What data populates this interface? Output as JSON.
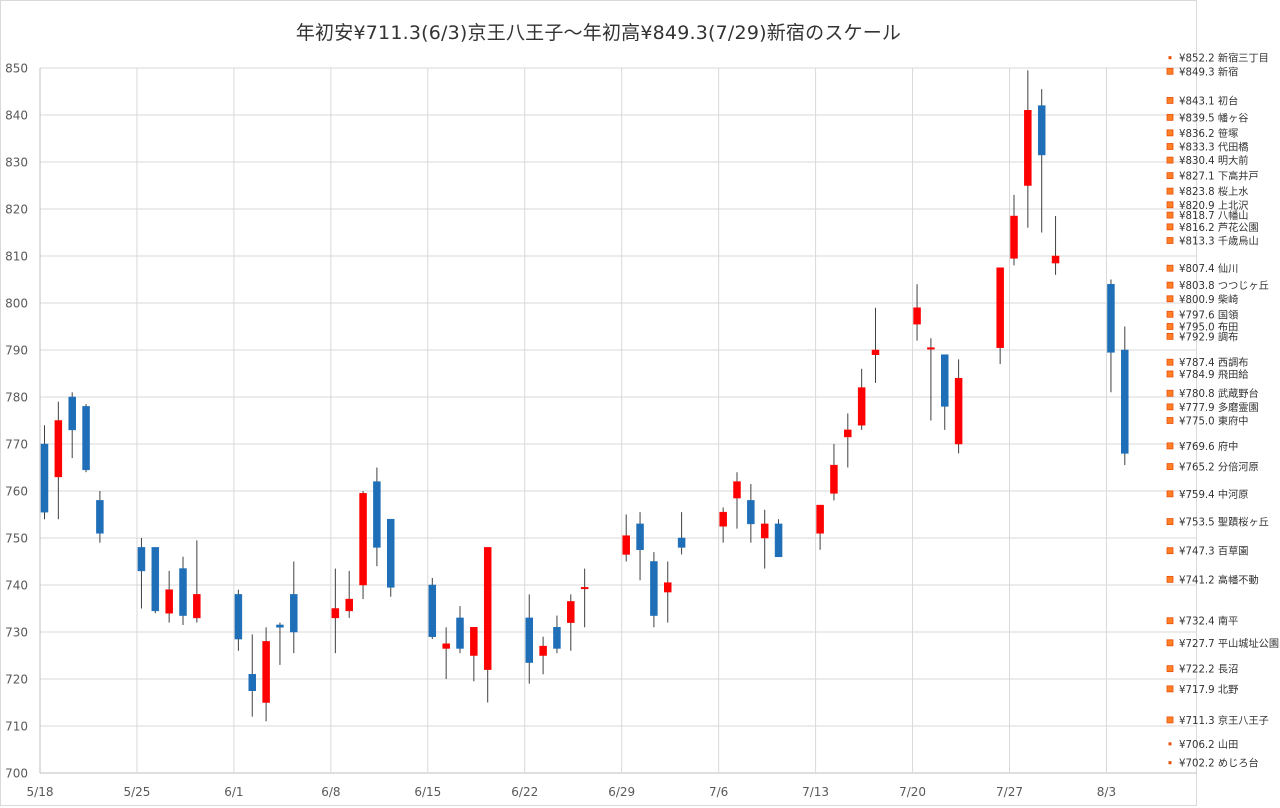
{
  "chart_data": {
    "type": "candlestick",
    "title": "年初安¥711.3(6/3)京王八王子～年初高¥849.3(7/29)新宿のスケール",
    "xlabel": "",
    "ylabel": "",
    "ylim": [
      700,
      850
    ],
    "yticks": [
      "700",
      "710",
      "720",
      "730",
      "740",
      "750",
      "760",
      "770",
      "780",
      "790",
      "800",
      "810",
      "820",
      "830",
      "840",
      "850"
    ],
    "xticks": [
      {
        "label": "5/18",
        "day": 0
      },
      {
        "label": "5/25",
        "day": 7
      },
      {
        "label": "6/1",
        "day": 14
      },
      {
        "label": "6/8",
        "day": 21
      },
      {
        "label": "6/15",
        "day": 28
      },
      {
        "label": "6/22",
        "day": 35
      },
      {
        "label": "6/29",
        "day": 42
      },
      {
        "label": "7/6",
        "day": 49
      },
      {
        "label": "7/13",
        "day": 56
      },
      {
        "label": "7/20",
        "day": 63
      },
      {
        "label": "7/27",
        "day": 70
      },
      {
        "label": "8/3",
        "day": 77
      }
    ],
    "grid": true,
    "up_color": "#ff0000",
    "down_color": "#1f6fb8",
    "wick_color": "#404040",
    "candles": [
      {
        "day": 0,
        "open": 770,
        "high": 774,
        "low": 754,
        "close": 755.5
      },
      {
        "day": 1,
        "open": 763,
        "high": 779,
        "low": 754,
        "close": 775
      },
      {
        "day": 2,
        "open": 780,
        "high": 781,
        "low": 767,
        "close": 773
      },
      {
        "day": 3,
        "open": 778,
        "high": 778.5,
        "low": 764,
        "close": 764.5
      },
      {
        "day": 4,
        "open": 758,
        "high": 760,
        "low": 749,
        "close": 751
      },
      {
        "day": 7,
        "open": 748,
        "high": 750,
        "low": 735,
        "close": 743
      },
      {
        "day": 8,
        "open": 748,
        "high": 748,
        "low": 734,
        "close": 734.5
      },
      {
        "day": 9,
        "open": 734,
        "high": 743,
        "low": 732,
        "close": 739
      },
      {
        "day": 10,
        "open": 743.5,
        "high": 746,
        "low": 731.5,
        "close": 733.5
      },
      {
        "day": 11,
        "open": 733,
        "high": 749.5,
        "low": 732,
        "close": 738
      },
      {
        "day": 14,
        "open": 738,
        "high": 739,
        "low": 726,
        "close": 728.5
      },
      {
        "day": 15,
        "open": 721,
        "high": 729.5,
        "low": 712,
        "close": 717.5
      },
      {
        "day": 16,
        "open": 715,
        "high": 731,
        "low": 711,
        "close": 728
      },
      {
        "day": 17,
        "open": 731.5,
        "high": 732,
        "low": 723,
        "close": 731
      },
      {
        "day": 18,
        "open": 738,
        "high": 745,
        "low": 725.5,
        "close": 730
      },
      {
        "day": 21,
        "open": 733,
        "high": 743.5,
        "low": 725.5,
        "close": 735
      },
      {
        "day": 22,
        "open": 734.5,
        "high": 743,
        "low": 733,
        "close": 737
      },
      {
        "day": 23,
        "open": 740,
        "high": 760,
        "low": 737,
        "close": 759.5
      },
      {
        "day": 24,
        "open": 762,
        "high": 765,
        "low": 744,
        "close": 748
      },
      {
        "day": 25,
        "open": 754,
        "high": 754,
        "low": 737.5,
        "close": 739.5
      },
      {
        "day": 28,
        "open": 740,
        "high": 741.5,
        "low": 728.5,
        "close": 729
      },
      {
        "day": 29,
        "open": 726.5,
        "high": 731,
        "low": 720,
        "close": 727.5
      },
      {
        "day": 30,
        "open": 733,
        "high": 735.5,
        "low": 725.5,
        "close": 726.5
      },
      {
        "day": 31,
        "open": 725,
        "high": 731,
        "low": 719.5,
        "close": 731
      },
      {
        "day": 32,
        "open": 722,
        "high": 748,
        "low": 715,
        "close": 748
      },
      {
        "day": 35,
        "open": 733,
        "high": 738,
        "low": 719,
        "close": 723.5
      },
      {
        "day": 36,
        "open": 725,
        "high": 729,
        "low": 721,
        "close": 727
      },
      {
        "day": 37,
        "open": 731,
        "high": 733.5,
        "low": 725.5,
        "close": 726.5
      },
      {
        "day": 38,
        "open": 732,
        "high": 738,
        "low": 726,
        "close": 736.5
      },
      {
        "day": 39,
        "open": 739.5,
        "high": 743.5,
        "low": 731,
        "close": 739.5
      },
      {
        "day": 42,
        "open": 746.5,
        "high": 755,
        "low": 745,
        "close": 750.5
      },
      {
        "day": 43,
        "open": 753,
        "high": 755.5,
        "low": 741,
        "close": 747.5
      },
      {
        "day": 44,
        "open": 745,
        "high": 747,
        "low": 731,
        "close": 733.5
      },
      {
        "day": 45,
        "open": 738.5,
        "high": 745,
        "low": 732,
        "close": 740.5
      },
      {
        "day": 46,
        "open": 750,
        "high": 755.5,
        "low": 746.5,
        "close": 748
      },
      {
        "day": 49,
        "open": 752.5,
        "high": 756.5,
        "low": 749,
        "close": 755.5
      },
      {
        "day": 50,
        "open": 758.5,
        "high": 764,
        "low": 752,
        "close": 762
      },
      {
        "day": 51,
        "open": 758,
        "high": 761.5,
        "low": 749,
        "close": 753
      },
      {
        "day": 52,
        "open": 750,
        "high": 756,
        "low": 743.5,
        "close": 753
      },
      {
        "day": 53,
        "open": 753,
        "high": 754,
        "low": 746,
        "close": 746
      },
      {
        "day": 56,
        "open": 751,
        "high": 757,
        "low": 747.5,
        "close": 757
      },
      {
        "day": 57,
        "open": 759.5,
        "high": 770,
        "low": 758,
        "close": 765.5
      },
      {
        "day": 58,
        "open": 771.5,
        "high": 776.5,
        "low": 765,
        "close": 773
      },
      {
        "day": 59,
        "open": 774,
        "high": 786,
        "low": 773,
        "close": 782
      },
      {
        "day": 60,
        "open": 789,
        "high": 799,
        "low": 783,
        "close": 790
      },
      {
        "day": 63,
        "open": 795.5,
        "high": 804,
        "low": 792,
        "close": 799
      },
      {
        "day": 64,
        "open": 790.5,
        "high": 792.5,
        "low": 775,
        "close": 790.5
      },
      {
        "day": 65,
        "open": 789,
        "high": 789,
        "low": 773,
        "close": 778
      },
      {
        "day": 66,
        "open": 770,
        "high": 788,
        "low": 768,
        "close": 784
      },
      {
        "day": 69,
        "open": 790.5,
        "high": 807.5,
        "low": 787,
        "close": 807.5
      },
      {
        "day": 70,
        "open": 809.5,
        "high": 823,
        "low": 808,
        "close": 818.5
      },
      {
        "day": 71,
        "open": 825,
        "high": 849.5,
        "low": 816,
        "close": 841
      },
      {
        "day": 72,
        "open": 842,
        "high": 845.5,
        "low": 815,
        "close": 831.5
      },
      {
        "day": 73,
        "open": 808.5,
        "high": 818.5,
        "low": 806,
        "close": 810
      },
      {
        "day": 77,
        "open": 804,
        "high": 805,
        "low": 781,
        "close": 789.5
      },
      {
        "day": 78,
        "open": 790,
        "high": 795,
        "low": 765.5,
        "close": 768
      }
    ],
    "stations": [
      {
        "price": 852.2,
        "label": "¥852.2 新宿三丁目",
        "marker": "small"
      },
      {
        "price": 849.3,
        "label": "¥849.3 新宿",
        "marker": "square"
      },
      {
        "price": 843.1,
        "label": "¥843.1 初台",
        "marker": "square"
      },
      {
        "price": 839.5,
        "label": "¥839.5 幡ヶ谷",
        "marker": "square"
      },
      {
        "price": 836.2,
        "label": "¥836.2 笹塚",
        "marker": "square"
      },
      {
        "price": 833.3,
        "label": "¥833.3 代田橋",
        "marker": "square"
      },
      {
        "price": 830.4,
        "label": "¥830.4 明大前",
        "marker": "square"
      },
      {
        "price": 827.1,
        "label": "¥827.1 下高井戸",
        "marker": "square"
      },
      {
        "price": 823.8,
        "label": "¥823.8 桜上水",
        "marker": "square"
      },
      {
        "price": 820.9,
        "label": "¥820.9 上北沢",
        "marker": "square"
      },
      {
        "price": 818.7,
        "label": "¥818.7 八幡山",
        "marker": "square"
      },
      {
        "price": 816.2,
        "label": "¥816.2 芦花公園",
        "marker": "square"
      },
      {
        "price": 813.3,
        "label": "¥813.3 千歳烏山",
        "marker": "square"
      },
      {
        "price": 807.4,
        "label": "¥807.4 仙川",
        "marker": "square"
      },
      {
        "price": 803.8,
        "label": "¥803.8 つつじヶ丘",
        "marker": "square"
      },
      {
        "price": 800.9,
        "label": "¥800.9 柴崎",
        "marker": "square"
      },
      {
        "price": 797.6,
        "label": "¥797.6 国領",
        "marker": "square"
      },
      {
        "price": 795.0,
        "label": "¥795.0 布田",
        "marker": "square"
      },
      {
        "price": 792.9,
        "label": "¥792.9 調布",
        "marker": "square"
      },
      {
        "price": 787.4,
        "label": "¥787.4 西調布",
        "marker": "square"
      },
      {
        "price": 784.9,
        "label": "¥784.9 飛田給",
        "marker": "square"
      },
      {
        "price": 780.8,
        "label": "¥780.8 武蔵野台",
        "marker": "square"
      },
      {
        "price": 777.9,
        "label": "¥777.9 多磨霊園",
        "marker": "square"
      },
      {
        "price": 775.0,
        "label": "¥775.0 東府中",
        "marker": "square"
      },
      {
        "price": 769.6,
        "label": "¥769.6 府中",
        "marker": "square"
      },
      {
        "price": 765.2,
        "label": "¥765.2 分倍河原",
        "marker": "square"
      },
      {
        "price": 759.4,
        "label": "¥759.4 中河原",
        "marker": "square"
      },
      {
        "price": 753.5,
        "label": "¥753.5 聖蹟桜ヶ丘",
        "marker": "square"
      },
      {
        "price": 747.3,
        "label": "¥747.3 百草園",
        "marker": "square"
      },
      {
        "price": 741.2,
        "label": "¥741.2 高幡不動",
        "marker": "square"
      },
      {
        "price": 732.4,
        "label": "¥732.4 南平",
        "marker": "square"
      },
      {
        "price": 727.7,
        "label": "¥727.7 平山城址公園",
        "marker": "square"
      },
      {
        "price": 722.2,
        "label": "¥722.2 長沼",
        "marker": "square"
      },
      {
        "price": 717.9,
        "label": "¥717.9 北野",
        "marker": "square"
      },
      {
        "price": 711.3,
        "label": "¥711.3 京王八王子",
        "marker": "square"
      },
      {
        "price": 706.2,
        "label": "¥706.2 山田",
        "marker": "small"
      },
      {
        "price": 702.2,
        "label": "¥702.2 めじろ台",
        "marker": "small"
      }
    ]
  }
}
